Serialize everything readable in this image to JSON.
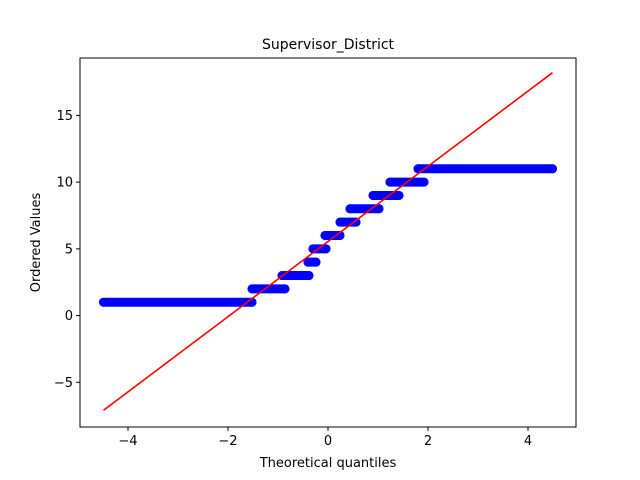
{
  "chart_data": {
    "type": "scatter",
    "title": "Supervisor_District",
    "xlabel": "Theoretical quantiles",
    "ylabel": "Ordered Values",
    "xlim": [
      -4.96,
      4.96
    ],
    "ylim": [
      -8.35,
      19.3
    ],
    "x_ticks": [
      -4,
      -2,
      0,
      2,
      4
    ],
    "x_tick_labels": [
      "−4",
      "−2",
      "0",
      "2",
      "4"
    ],
    "y_ticks": [
      -5,
      0,
      5,
      10,
      15
    ],
    "y_tick_labels": [
      "−5",
      "0",
      "5",
      "10",
      "15"
    ],
    "grid": false,
    "legend": "none",
    "series": [
      {
        "kind": "ordered-values",
        "marker": "circle",
        "color": "#0000ff",
        "plateaus": [
          {
            "value": 1,
            "x_start": -4.49,
            "x_end": -1.52
          },
          {
            "value": 2,
            "x_start": -1.52,
            "x_end": -0.86
          },
          {
            "value": 3,
            "x_start": -0.92,
            "x_end": -0.38
          },
          {
            "value": 4,
            "x_start": -0.4,
            "x_end": -0.24
          },
          {
            "value": 5,
            "x_start": -0.3,
            "x_end": -0.04
          },
          {
            "value": 6,
            "x_start": -0.06,
            "x_end": 0.24
          },
          {
            "value": 7,
            "x_start": 0.24,
            "x_end": 0.56
          },
          {
            "value": 8,
            "x_start": 0.44,
            "x_end": 1.02
          },
          {
            "value": 9,
            "x_start": 0.9,
            "x_end": 1.42
          },
          {
            "value": 10,
            "x_start": 1.24,
            "x_end": 1.92
          },
          {
            "value": 11,
            "x_start": 1.8,
            "x_end": 4.49
          }
        ]
      },
      {
        "kind": "reference-line",
        "color": "#ff0000",
        "x": [
          -4.49,
          4.49
        ],
        "y": [
          -7.1,
          18.2
        ]
      }
    ]
  }
}
